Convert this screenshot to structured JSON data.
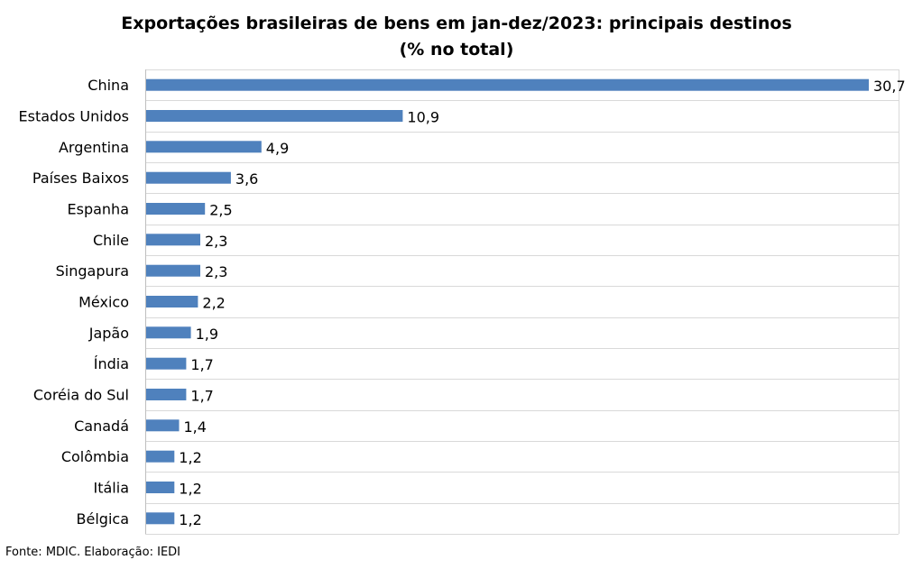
{
  "chart_data": {
    "type": "bar",
    "orientation": "horizontal",
    "title": "Exportações brasileiras de bens em jan-dez/2023: principais destinos",
    "subtitle": "(% no total)",
    "categories": [
      "China",
      "Estados Unidos",
      "Argentina",
      "Países Baixos",
      "Espanha",
      "Chile",
      "Singapura",
      "México",
      "Japão",
      "Índia",
      "Coréia do Sul",
      "Canadá",
      "Colômbia",
      "Itália",
      "Bélgica"
    ],
    "values": [
      30.7,
      10.9,
      4.9,
      3.6,
      2.5,
      2.3,
      2.3,
      2.2,
      1.9,
      1.7,
      1.7,
      1.4,
      1.2,
      1.2,
      1.2
    ],
    "value_labels": [
      "30,7",
      "10,9",
      "4,9",
      "3,6",
      "2,5",
      "2,3",
      "2,3",
      "2,2",
      "1,9",
      "1,7",
      "1,7",
      "1,4",
      "1,2",
      "1,2",
      "1,2"
    ],
    "xlim": [
      0,
      30.7
    ],
    "grid": true,
    "bar_color": "#4f81bd",
    "grid_color": "#d9d9d9"
  },
  "source": "Fonte: MDIC. Elaboração: IEDI"
}
